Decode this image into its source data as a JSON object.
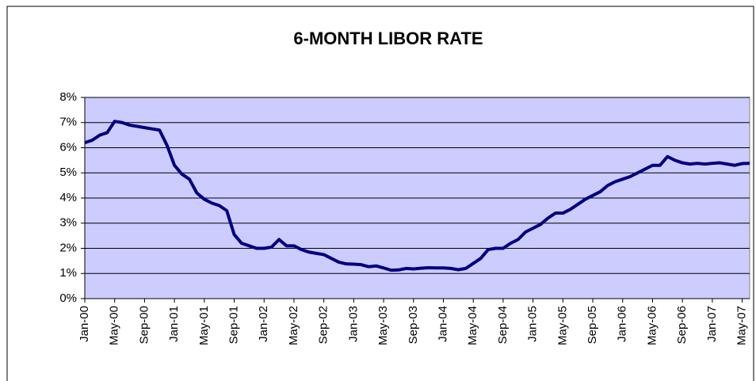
{
  "chart_data": {
    "type": "line",
    "title": "6-MONTH LIBOR RATE",
    "categories": [
      "Jan-00",
      null,
      null,
      null,
      "May-00",
      null,
      null,
      null,
      "Sep-00",
      null,
      null,
      null,
      "Jan-01",
      null,
      null,
      null,
      "May-01",
      null,
      null,
      null,
      "Sep-01",
      null,
      null,
      null,
      "Jan-02",
      null,
      null,
      null,
      "May-02",
      null,
      null,
      null,
      "Sep-02",
      null,
      null,
      null,
      "Jan-03",
      null,
      null,
      null,
      "May-03",
      null,
      null,
      null,
      "Sep-03",
      null,
      null,
      null,
      "Jan-04",
      null,
      null,
      null,
      "May-04",
      null,
      null,
      null,
      "Sep-04",
      null,
      null,
      null,
      "Jan-05",
      null,
      null,
      null,
      "May-05",
      null,
      null,
      null,
      "Sep-05",
      null,
      null,
      null,
      "Jan-06",
      null,
      null,
      null,
      "May-06",
      null,
      null,
      null,
      "Sep-06",
      null,
      null,
      null,
      "Jan-07",
      null,
      null,
      null,
      "May-07",
      null
    ],
    "series": [
      {
        "color": "#000080",
        "values": [
          6.2,
          6.3,
          6.5,
          6.6,
          7.05,
          7.0,
          6.9,
          6.85,
          6.8,
          6.75,
          6.7,
          6.1,
          5.3,
          4.95,
          4.75,
          4.2,
          3.95,
          3.8,
          3.7,
          3.5,
          2.55,
          2.2,
          2.1,
          2.0,
          2.0,
          2.05,
          2.35,
          2.1,
          2.1,
          1.95,
          1.85,
          1.8,
          1.75,
          1.6,
          1.45,
          1.38,
          1.37,
          1.35,
          1.27,
          1.3,
          1.22,
          1.13,
          1.14,
          1.2,
          1.18,
          1.21,
          1.23,
          1.22,
          1.22,
          1.2,
          1.15,
          1.2,
          1.4,
          1.6,
          1.95,
          2.0,
          2.0,
          2.2,
          2.35,
          2.65,
          2.8,
          2.95,
          3.2,
          3.4,
          3.4,
          3.55,
          3.75,
          3.95,
          4.1,
          4.25,
          4.5,
          4.65,
          4.75,
          4.85,
          5.0,
          5.15,
          5.3,
          5.3,
          5.65,
          5.5,
          5.4,
          5.35,
          5.38,
          5.35,
          5.38,
          5.4,
          5.35,
          5.3,
          5.37,
          5.38
        ]
      }
    ],
    "ylim": [
      0,
      8
    ],
    "yticks": [
      {
        "value": 0,
        "label": "0%"
      },
      {
        "value": 1,
        "label": "1%"
      },
      {
        "value": 2,
        "label": "2%"
      },
      {
        "value": 3,
        "label": "3%"
      },
      {
        "value": 4,
        "label": "4%"
      },
      {
        "value": 5,
        "label": "5%"
      },
      {
        "value": 6,
        "label": "6%"
      },
      {
        "value": 7,
        "label": "7%"
      },
      {
        "value": 8,
        "label": "8%"
      }
    ],
    "grid": true,
    "plot_background": "#ccccff"
  }
}
